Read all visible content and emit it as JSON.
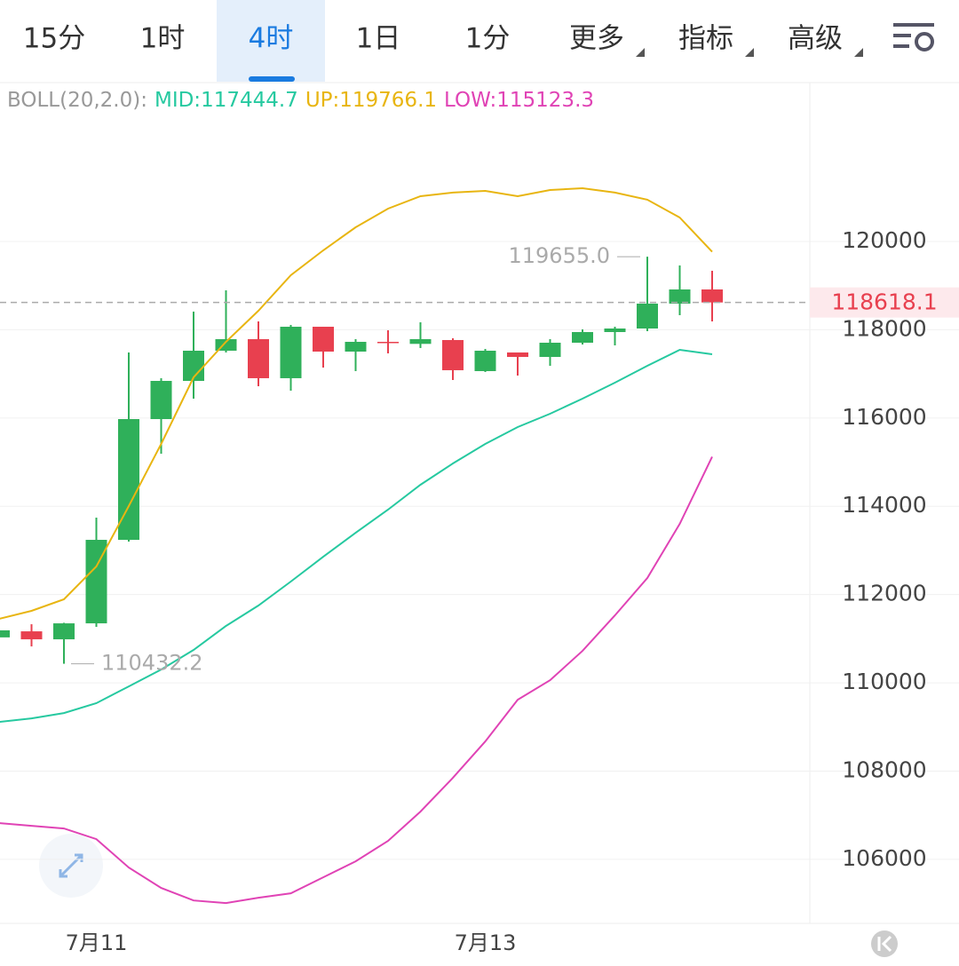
{
  "tabs": [
    "15分",
    "1时",
    "4时",
    "1日",
    "1分",
    "更多",
    "指标",
    "高级"
  ],
  "chart_data": {
    "type": "candlestick",
    "indicator": "BOLL(20,2.0):",
    "categories": [
      null,
      null,
      null,
      "7月11",
      null,
      null,
      null,
      null,
      null,
      null,
      null,
      null,
      null,
      null,
      null,
      "7月13",
      null,
      null,
      null,
      null,
      null,
      null,
      null
    ],
    "open": [
      111030,
      111167,
      110986,
      111348,
      113240,
      115976,
      116841,
      117525,
      117787,
      116902,
      118068,
      117505,
      117726,
      117680,
      117767,
      117063,
      117485,
      117384,
      117706,
      117948,
      118028,
      118592,
      118913
    ],
    "high": [
      111200,
      111328,
      111360,
      113743,
      117485,
      116902,
      118411,
      118893,
      118189,
      118109,
      118068,
      117787,
      117988,
      118169,
      117807,
      117565,
      117485,
      117787,
      118008,
      118068,
      119655,
      119457,
      119336
    ],
    "low": [
      111000,
      110825,
      110432.2,
      111268,
      113200,
      115191,
      116439,
      117485,
      116720,
      116620,
      117143,
      117063,
      117465,
      117586,
      116861,
      117043,
      116962,
      117183,
      117666,
      117646,
      117968,
      118330,
      118189
    ],
    "close": [
      111190,
      110986,
      111348,
      113240,
      115976,
      116841,
      117525,
      117787,
      116902,
      118068,
      117505,
      117726,
      117700,
      117787,
      117083,
      117525,
      117384,
      117706,
      117948,
      118028,
      118592,
      118913,
      118618.1
    ],
    "up_color": "#2fb05a",
    "down_color": "#e8404f",
    "series": [
      {
        "name": "MID:",
        "color": "#26c9a0",
        "values": [
          109115,
          109195,
          109316,
          109538,
          109920,
          110302,
          110745,
          111288,
          111751,
          112294,
          112857,
          113400,
          113924,
          114487,
          114970,
          115413,
          115795,
          116097,
          116439,
          116801,
          117183,
          117545,
          117444.7
        ]
      },
      {
        "name": "UP:",
        "color": "#e8b511",
        "values": [
          111449,
          111630,
          111892,
          112636,
          114004,
          115413,
          116922,
          117726,
          118431,
          119235,
          119799,
          120322,
          120744,
          121026,
          121107,
          121147,
          121026,
          121167,
          121207,
          121107,
          120946,
          120543,
          119766.1
        ]
      },
      {
        "name": "LOW:",
        "color": "#e043b5",
        "values": [
          106822,
          106761,
          106701,
          106459,
          105815,
          105352,
          105070,
          105010,
          105131,
          105231,
          105594,
          105956,
          106419,
          107083,
          107847,
          108672,
          109618,
          110060,
          110724,
          111529,
          112375,
          113602,
          115123.3
        ]
      }
    ],
    "annotations": [
      {
        "value": 119655,
        "label": "119655.0"
      },
      {
        "value": 110432.2,
        "label": "110432.2"
      }
    ],
    "last_price": 118618.1,
    "ylim": [
      104550,
      123560
    ],
    "yticks": [
      106000,
      108000,
      110000,
      112000,
      114000,
      116000,
      118000,
      120000
    ],
    "grid": true
  }
}
